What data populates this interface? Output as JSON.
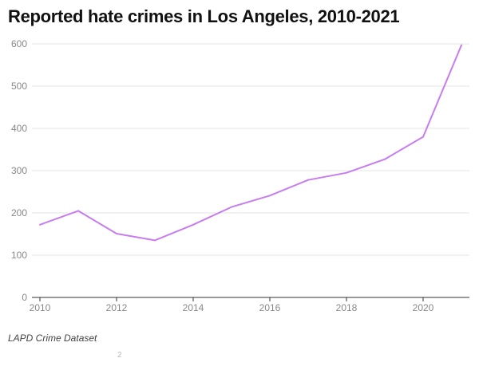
{
  "chart_data": {
    "type": "line",
    "title": "Reported hate crimes in Los Angeles, 2010-2021",
    "xlabel": "",
    "ylabel": "",
    "xlim": [
      2010,
      2021
    ],
    "ylim": [
      0,
      600
    ],
    "y_ticks": [
      0,
      100,
      200,
      300,
      400,
      500,
      600
    ],
    "x_ticks": [
      2010,
      2012,
      2014,
      2016,
      2018,
      2020
    ],
    "grid": true,
    "legend": "none",
    "line_color": "#c77df0",
    "series": [
      {
        "x": [
          2010,
          2011,
          2012,
          2013,
          2014,
          2015,
          2016,
          2017,
          2018,
          2019,
          2020,
          2021
        ],
        "values": [
          172,
          205,
          151,
          135,
          172,
          214,
          241,
          278,
          295,
          327,
          380,
          597
        ]
      }
    ]
  },
  "source": "LAPD Crime Dataset",
  "footmark": "2"
}
